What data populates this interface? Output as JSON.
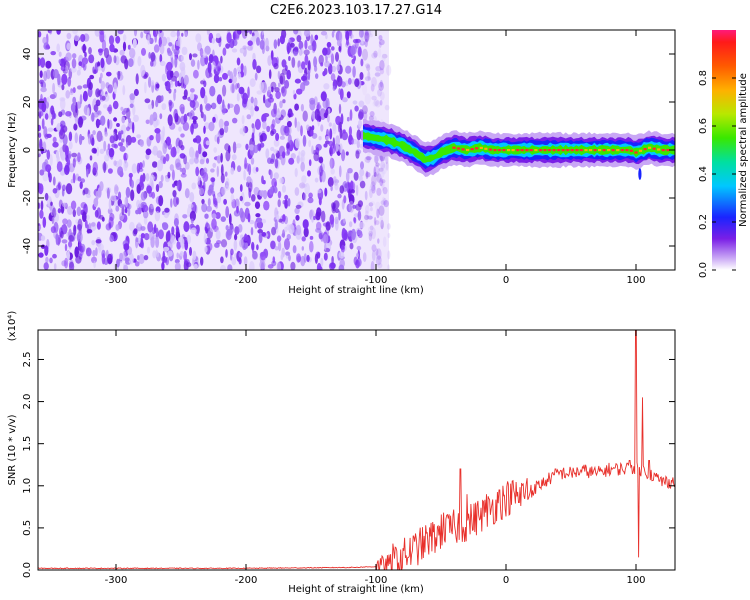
{
  "title": "C2E6.2023.103.17.27.G14",
  "chart_data": [
    {
      "type": "heatmap",
      "xlabel": "Height of straight line (km)",
      "ylabel": "Frequency (Hz)",
      "xlim": [
        -360,
        130
      ],
      "ylim": [
        -50,
        50
      ],
      "xticks": [
        -300,
        -200,
        -100,
        0,
        100
      ],
      "yticks": [
        -40,
        -20,
        0,
        20,
        40
      ],
      "noise_region_x": [
        -360,
        -90
      ],
      "signal_centerline": [
        [
          -110,
          6
        ],
        [
          -100,
          5
        ],
        [
          -90,
          4
        ],
        [
          -80,
          2
        ],
        [
          -70,
          -1
        ],
        [
          -62,
          -4
        ],
        [
          -55,
          -3
        ],
        [
          -50,
          -1
        ],
        [
          -45,
          0
        ],
        [
          -40,
          1
        ],
        [
          -30,
          0
        ],
        [
          -20,
          1
        ],
        [
          -10,
          0
        ],
        [
          0,
          0
        ],
        [
          20,
          0
        ],
        [
          40,
          0
        ],
        [
          60,
          0
        ],
        [
          80,
          0
        ],
        [
          95,
          0
        ],
        [
          100,
          -1
        ],
        [
          110,
          1
        ],
        [
          120,
          0
        ],
        [
          130,
          0
        ]
      ],
      "colorbar": {
        "label": "Normalized spectral amplitude",
        "ticks": [
          "0.0",
          "0.2",
          "0.4",
          "0.6",
          "0.8"
        ],
        "range": [
          0,
          1
        ]
      }
    },
    {
      "type": "line",
      "xlabel": "Height of straight line (km)",
      "ylabel": "SNR (10 * v/v)",
      "y_multiplier": "(x10⁴)",
      "xlim": [
        -360,
        130
      ],
      "ylim": [
        0,
        2.85
      ],
      "xticks": [
        -300,
        -200,
        -100,
        0,
        100
      ],
      "yticks": [
        "0.0",
        "0.5",
        "1.0",
        "1.5",
        "2.0",
        "2.5"
      ],
      "color": "#e8302b",
      "trend": [
        [
          -360,
          0.02
        ],
        [
          -200,
          0.02
        ],
        [
          -120,
          0.03
        ],
        [
          -100,
          0.04
        ],
        [
          -90,
          0.08
        ],
        [
          -80,
          0.15
        ],
        [
          -70,
          0.25
        ],
        [
          -60,
          0.35
        ],
        [
          -50,
          0.45
        ],
        [
          -40,
          0.5
        ],
        [
          -30,
          0.55
        ],
        [
          -20,
          0.65
        ],
        [
          -10,
          0.75
        ],
        [
          0,
          0.85
        ],
        [
          10,
          0.9
        ],
        [
          20,
          0.95
        ],
        [
          30,
          1.05
        ],
        [
          40,
          1.15
        ],
        [
          50,
          1.15
        ],
        [
          60,
          1.18
        ],
        [
          70,
          1.15
        ],
        [
          80,
          1.2
        ],
        [
          90,
          1.2
        ],
        [
          100,
          1.22
        ],
        [
          110,
          1.15
        ],
        [
          120,
          1.05
        ],
        [
          130,
          1.05
        ]
      ],
      "spikes": [
        [
          -48,
          0.68
        ],
        [
          -35,
          1.2
        ],
        [
          -30,
          0.9
        ],
        [
          -15,
          0.9
        ],
        [
          -5,
          0.95
        ],
        [
          10,
          0.8
        ],
        [
          95,
          1.3
        ],
        [
          100,
          2.85
        ],
        [
          102,
          0.15
        ],
        [
          105,
          2.05
        ],
        [
          110,
          1.3
        ]
      ]
    }
  ]
}
